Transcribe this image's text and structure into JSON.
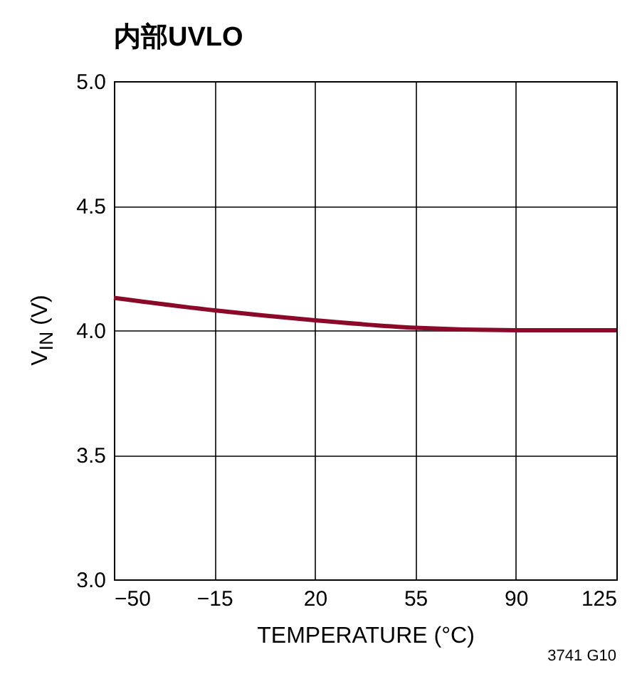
{
  "chart_data": {
    "type": "line",
    "title": "内部UVLO",
    "xlabel": "TEMPERATURE (°C)",
    "ylabel": "V$_{IN}$ (V)",
    "annotations": [
      "3741 G10"
    ],
    "x": [
      -50,
      -15,
      20,
      55,
      90,
      125
    ],
    "series": [
      {
        "color": "#8b0a2a",
        "values": [
          4.13,
          4.08,
          4.04,
          4.01,
          4.0,
          4.0
        ]
      }
    ],
    "xlim": [
      -50,
      125
    ],
    "xticks": [
      -50,
      -15,
      20,
      55,
      90,
      125
    ],
    "ylim": [
      3.0,
      5.0
    ],
    "yticks": [
      {
        "value": 3,
        "label": "3.0"
      },
      3.5,
      {
        "value": 4,
        "label": "4.0"
      },
      4.5,
      {
        "value": 5,
        "label": "5.0"
      }
    ],
    "grid": true,
    "legend": false,
    "marker": "none",
    "line_style": "solid"
  }
}
